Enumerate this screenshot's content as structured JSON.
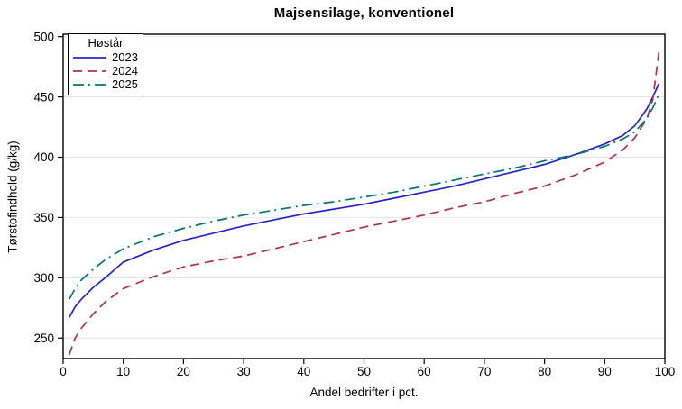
{
  "chart_data": {
    "type": "line",
    "title": "Majsensilage, konventionel",
    "xlabel": "Andel bedrifter i pct.",
    "ylabel": "Tørstofindhold (g/kg)",
    "legend_title": "Høstår",
    "legend_position": "top-left-inside",
    "grid": "horizontal-only",
    "grid_color": "#e4e4e4",
    "frame_color": "#000000",
    "background_color": "#ffffff",
    "xlim": [
      0,
      100
    ],
    "ylim": [
      233,
      502
    ],
    "xticks": [
      0,
      10,
      20,
      30,
      40,
      50,
      60,
      70,
      80,
      90,
      100
    ],
    "yticks": [
      250,
      300,
      350,
      400,
      450,
      500
    ],
    "x": [
      1,
      2,
      3,
      5,
      7,
      10,
      15,
      20,
      25,
      30,
      35,
      40,
      45,
      50,
      55,
      60,
      65,
      70,
      75,
      80,
      85,
      90,
      93,
      95,
      97,
      98,
      99
    ],
    "series": [
      {
        "name": "2023",
        "color": "#2424cb",
        "dash": "solid",
        "values": [
          267,
          276,
          282,
          292,
          300,
          313,
          323,
          331,
          337,
          343,
          348,
          353,
          357,
          361,
          366,
          371,
          376,
          382,
          388,
          394,
          402,
          411,
          418,
          426,
          440,
          450,
          461
        ]
      },
      {
        "name": "2024",
        "color": "#ad3448",
        "dash": "dashed",
        "values": [
          236,
          250,
          258,
          270,
          280,
          291,
          301,
          309,
          314,
          318,
          324,
          330,
          336,
          342,
          347,
          352,
          358,
          363,
          370,
          376,
          385,
          396,
          406,
          416,
          432,
          448,
          487
        ]
      },
      {
        "name": "2025",
        "color": "#00786c",
        "dash": "dash-dot",
        "values": [
          282,
          291,
          298,
          307,
          315,
          324,
          334,
          341,
          347,
          352,
          356,
          360,
          363,
          367,
          371,
          376,
          381,
          386,
          391,
          397,
          402,
          409,
          415,
          421,
          432,
          441,
          452
        ]
      }
    ]
  }
}
